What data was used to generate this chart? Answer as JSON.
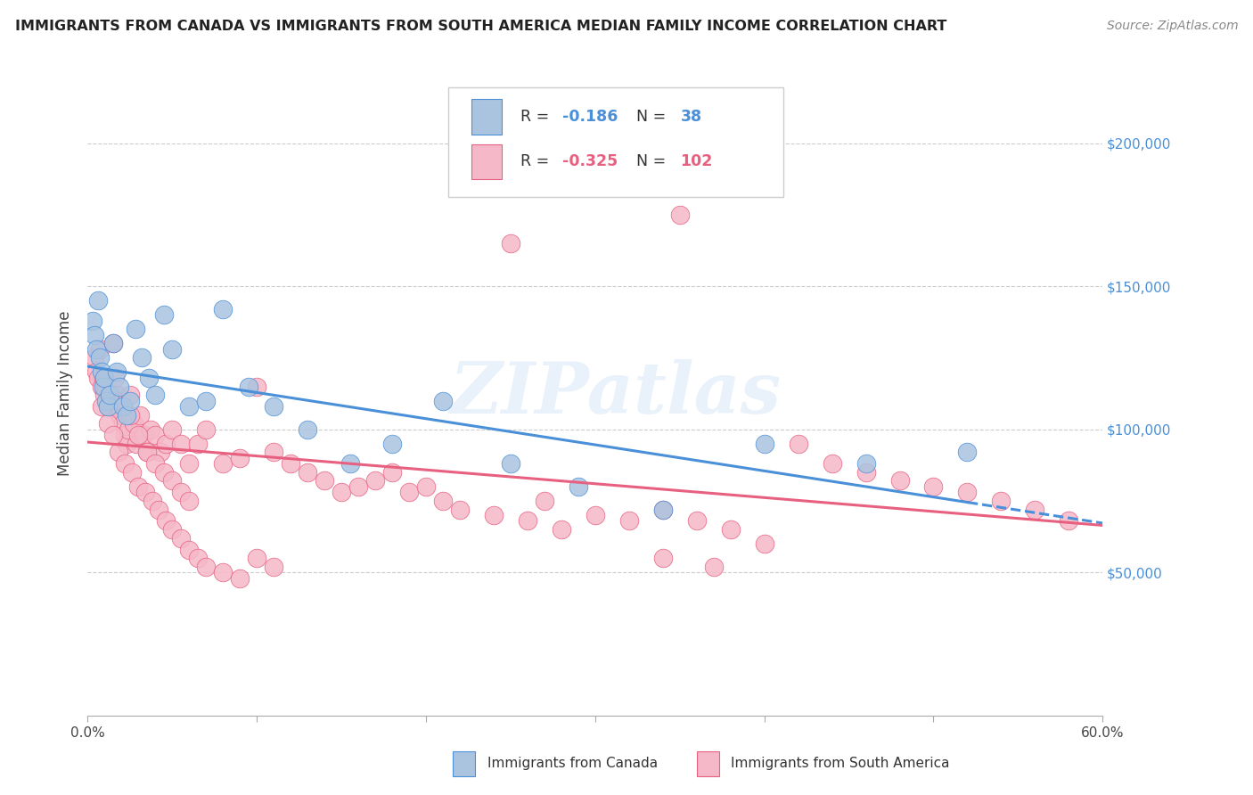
{
  "title": "IMMIGRANTS FROM CANADA VS IMMIGRANTS FROM SOUTH AMERICA MEDIAN FAMILY INCOME CORRELATION CHART",
  "source": "Source: ZipAtlas.com",
  "ylabel": "Median Family Income",
  "xlim": [
    0.0,
    0.6
  ],
  "ylim": [
    0,
    225000
  ],
  "canada_color": "#aac4e0",
  "canada_line_color": "#4a90d9",
  "south_america_color": "#f5b8c8",
  "south_america_line_color": "#e86080",
  "watermark": "ZIPatlas",
  "canada_scatter_x": [
    0.003,
    0.004,
    0.005,
    0.006,
    0.007,
    0.008,
    0.009,
    0.01,
    0.011,
    0.012,
    0.013,
    0.015,
    0.017,
    0.019,
    0.021,
    0.023,
    0.025,
    0.028,
    0.032,
    0.036,
    0.04,
    0.045,
    0.05,
    0.06,
    0.07,
    0.08,
    0.095,
    0.11,
    0.13,
    0.155,
    0.18,
    0.21,
    0.25,
    0.29,
    0.34,
    0.4,
    0.46,
    0.52
  ],
  "canada_scatter_y": [
    138000,
    133000,
    128000,
    145000,
    125000,
    120000,
    115000,
    118000,
    110000,
    108000,
    112000,
    130000,
    120000,
    115000,
    108000,
    105000,
    110000,
    135000,
    125000,
    118000,
    112000,
    140000,
    128000,
    108000,
    110000,
    142000,
    115000,
    108000,
    100000,
    88000,
    95000,
    110000,
    88000,
    80000,
    72000,
    95000,
    88000,
    92000
  ],
  "south_america_scatter_x": [
    0.004,
    0.005,
    0.006,
    0.007,
    0.008,
    0.009,
    0.01,
    0.011,
    0.012,
    0.013,
    0.014,
    0.015,
    0.016,
    0.017,
    0.018,
    0.019,
    0.02,
    0.021,
    0.022,
    0.023,
    0.024,
    0.025,
    0.027,
    0.029,
    0.031,
    0.033,
    0.035,
    0.037,
    0.04,
    0.043,
    0.046,
    0.05,
    0.055,
    0.06,
    0.065,
    0.07,
    0.08,
    0.09,
    0.1,
    0.11,
    0.12,
    0.13,
    0.14,
    0.15,
    0.16,
    0.17,
    0.18,
    0.19,
    0.2,
    0.21,
    0.22,
    0.24,
    0.26,
    0.28,
    0.3,
    0.32,
    0.34,
    0.36,
    0.38,
    0.4,
    0.35,
    0.42,
    0.44,
    0.46,
    0.48,
    0.5,
    0.52,
    0.54,
    0.56,
    0.58,
    0.008,
    0.012,
    0.015,
    0.018,
    0.022,
    0.026,
    0.03,
    0.034,
    0.038,
    0.042,
    0.046,
    0.05,
    0.055,
    0.06,
    0.065,
    0.07,
    0.08,
    0.09,
    0.1,
    0.11,
    0.025,
    0.03,
    0.035,
    0.04,
    0.045,
    0.05,
    0.055,
    0.06,
    0.34,
    0.37,
    0.25,
    0.27
  ],
  "south_america_scatter_y": [
    125000,
    120000,
    118000,
    128000,
    115000,
    118000,
    112000,
    115000,
    108000,
    112000,
    108000,
    130000,
    118000,
    112000,
    108000,
    105000,
    110000,
    102000,
    98000,
    95000,
    100000,
    112000,
    102000,
    95000,
    105000,
    98000,
    92000,
    100000,
    98000,
    92000,
    95000,
    100000,
    95000,
    88000,
    95000,
    100000,
    88000,
    90000,
    115000,
    92000,
    88000,
    85000,
    82000,
    78000,
    80000,
    82000,
    85000,
    78000,
    80000,
    75000,
    72000,
    70000,
    68000,
    65000,
    70000,
    68000,
    72000,
    68000,
    65000,
    60000,
    175000,
    95000,
    88000,
    85000,
    82000,
    80000,
    78000,
    75000,
    72000,
    68000,
    108000,
    102000,
    98000,
    92000,
    88000,
    85000,
    80000,
    78000,
    75000,
    72000,
    68000,
    65000,
    62000,
    58000,
    55000,
    52000,
    50000,
    48000,
    55000,
    52000,
    105000,
    98000,
    92000,
    88000,
    85000,
    82000,
    78000,
    75000,
    55000,
    52000,
    165000,
    75000
  ]
}
